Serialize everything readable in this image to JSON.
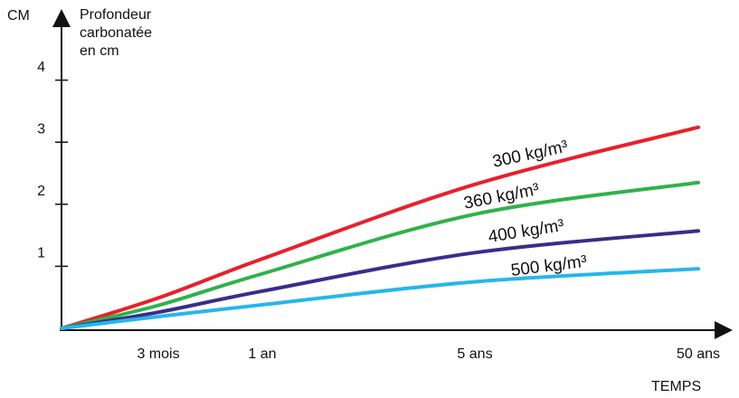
{
  "chart_data": {
    "type": "line",
    "y_axis_unit": "CM",
    "ylabel": [
      "Profondeur",
      "carbonatée",
      "en cm"
    ],
    "xlabel": "TEMPS",
    "categories": [
      null,
      "3 mois",
      "1 an",
      "5 ans",
      "50 ans"
    ],
    "ylim": [
      0,
      5
    ],
    "yticks": [
      1,
      2,
      3,
      4
    ],
    "series": [
      {
        "name": "300 kg/m³",
        "color": "#e8202a",
        "values": [
          0,
          0.49,
          1.12,
          2.32,
          3.24
        ]
      },
      {
        "name": "360 kg/m³",
        "color": "#2fb24a",
        "values": [
          0,
          0.37,
          0.88,
          1.84,
          2.35
        ]
      },
      {
        "name": "400 kg/m³",
        "color": "#3a2c8c",
        "values": [
          0,
          0.26,
          0.6,
          1.22,
          1.57
        ]
      },
      {
        "name": "500 kg/m³",
        "color": "#27b6ea",
        "values": [
          0,
          0.19,
          0.38,
          0.75,
          0.96
        ]
      }
    ]
  }
}
